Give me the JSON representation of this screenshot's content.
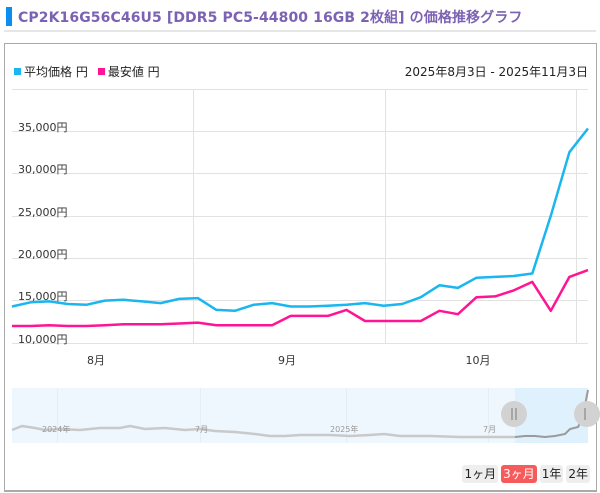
{
  "header": {
    "title": "CP2K16G56C46U5 [DDR5 PC5-44800 16GB 2枚組] の価格推移グラフ"
  },
  "legend": {
    "items": [
      {
        "label": "平均価格 円",
        "color": "#1ab6f0"
      },
      {
        "label": "最安値 円",
        "color": "#ff1493"
      }
    ]
  },
  "date_range": "2025年8月3日 - 2025年11月3日",
  "axis": {
    "y_labels": [
      "35,000円",
      "30,000円",
      "25,000円",
      "20,000円",
      "15,000円",
      "10,000円"
    ],
    "x_labels": [
      "8月",
      "9月",
      "10月"
    ]
  },
  "navigator": {
    "labels": [
      "2024年",
      "7月",
      "2025年",
      "7月"
    ]
  },
  "range_buttons": [
    {
      "label": "1ヶ月",
      "active": false
    },
    {
      "label": "3ヶ月",
      "active": true
    },
    {
      "label": "1年",
      "active": false
    },
    {
      "label": "2年",
      "active": false
    }
  ],
  "chart_data": {
    "type": "line",
    "title": "CP2K16G56C46U5 [DDR5 PC5-44800 16GB 2枚組] の価格推移グラフ",
    "xlabel": "",
    "ylabel": "円",
    "ylim": [
      10000,
      37500
    ],
    "x_range": [
      "2025-08-03",
      "2025-11-03"
    ],
    "x_ticks": [
      "8月",
      "9月",
      "10月"
    ],
    "y_ticks": [
      10000,
      15000,
      20000,
      25000,
      30000,
      35000
    ],
    "grid": true,
    "legend_position": "top-left",
    "x": [
      "08-03",
      "08-06",
      "08-09",
      "08-12",
      "08-15",
      "08-18",
      "08-21",
      "08-24",
      "08-27",
      "08-30",
      "09-02",
      "09-05",
      "09-08",
      "09-11",
      "09-14",
      "09-17",
      "09-20",
      "09-23",
      "09-26",
      "09-29",
      "10-02",
      "10-05",
      "10-08",
      "10-11",
      "10-14",
      "10-17",
      "10-20",
      "10-23",
      "10-26",
      "10-29",
      "11-01",
      "11-03"
    ],
    "series": [
      {
        "name": "平均価格 円",
        "color": "#1ab6f0",
        "values": [
          14300,
          14800,
          14900,
          14600,
          14500,
          15000,
          15100,
          14900,
          14700,
          15200,
          15300,
          13900,
          13800,
          14500,
          14700,
          14300,
          14300,
          14400,
          14500,
          14700,
          14400,
          14600,
          15400,
          16800,
          16500,
          17700,
          17800,
          17900,
          18200,
          25000,
          32500,
          35300
        ]
      },
      {
        "name": "最安値 円",
        "color": "#ff1493",
        "values": [
          12000,
          12000,
          12100,
          12000,
          12000,
          12100,
          12200,
          12200,
          12200,
          12300,
          12400,
          12100,
          12100,
          12100,
          12100,
          13200,
          13200,
          13200,
          13900,
          12600,
          12600,
          12600,
          12600,
          13800,
          13400,
          15400,
          15500,
          16200,
          17200,
          13800,
          17800,
          18600
        ]
      }
    ]
  }
}
